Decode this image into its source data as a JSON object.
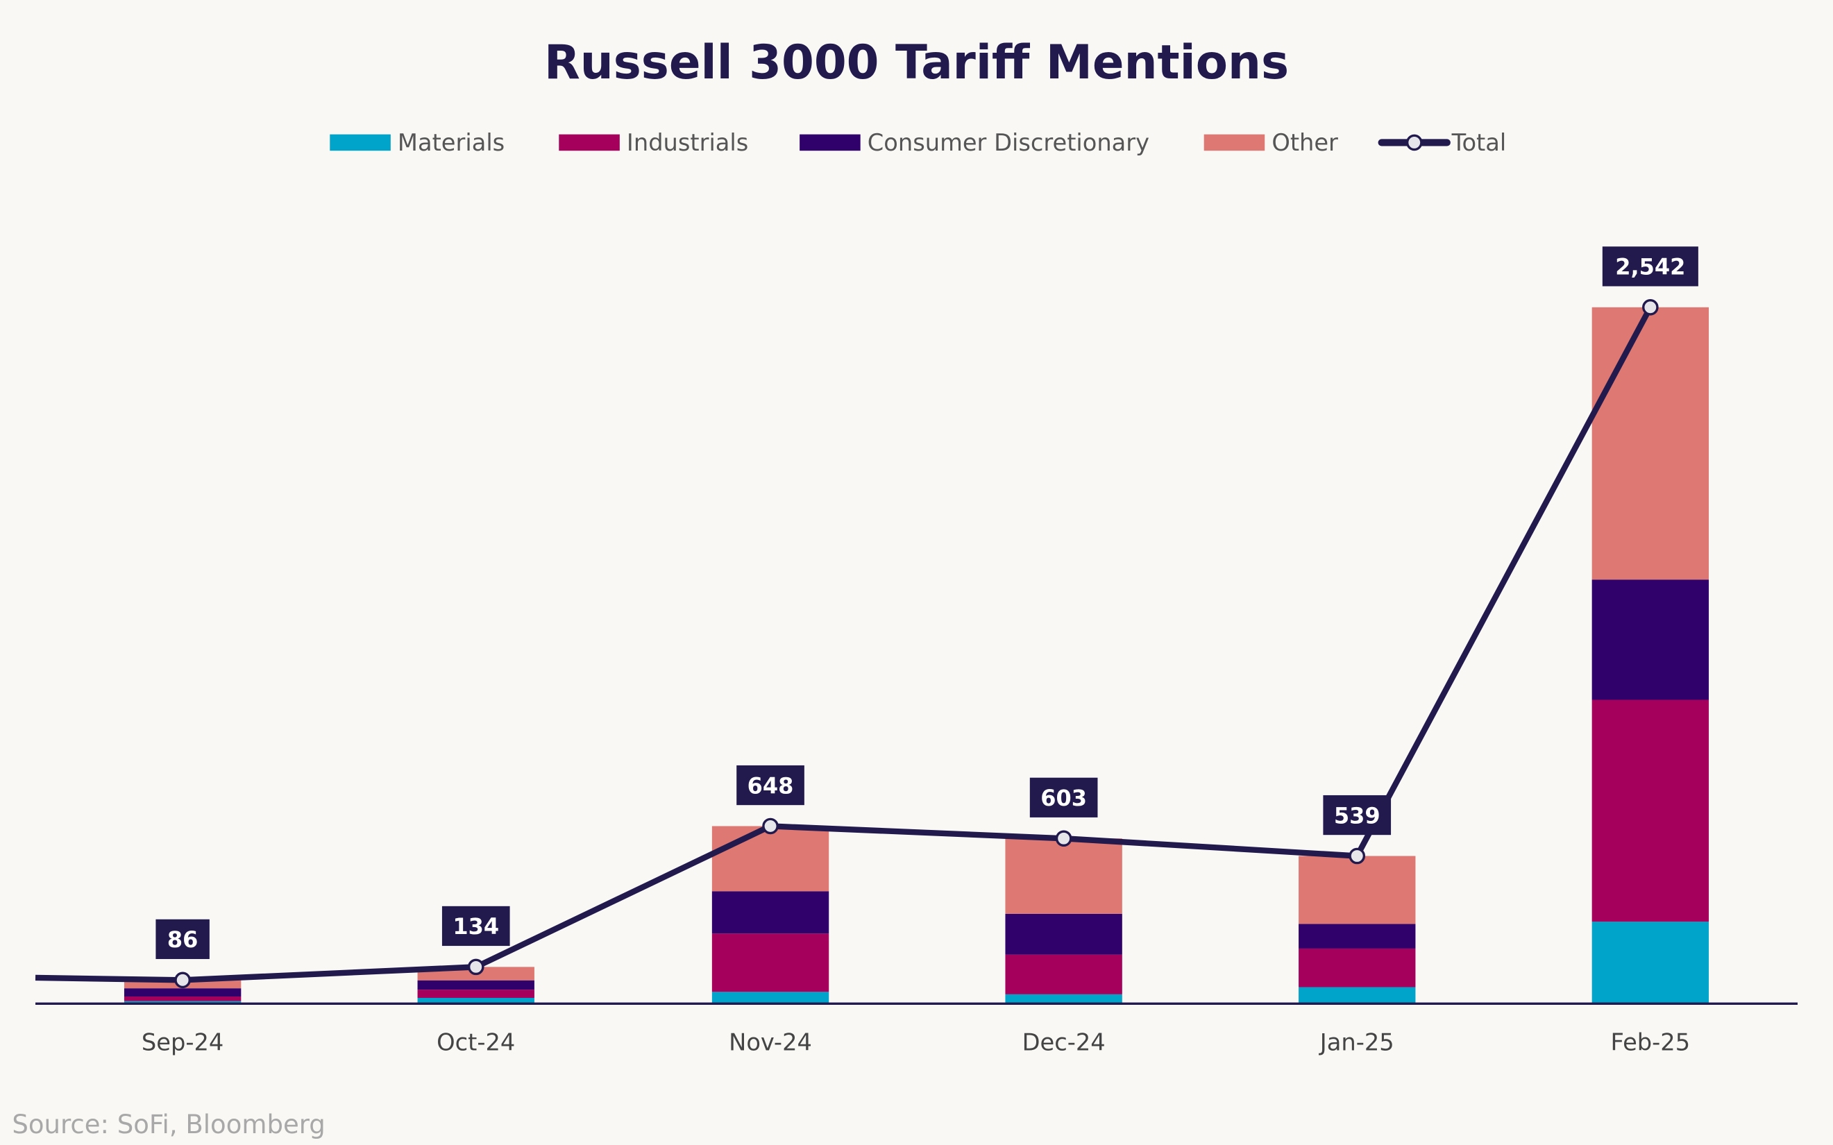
{
  "chart_data": {
    "type": "bar",
    "title": "Russell 3000 Tariff Mentions",
    "categories": [
      "Sep-24",
      "Oct-24",
      "Nov-24",
      "Dec-24",
      "Jan-25",
      "Feb-25"
    ],
    "stacked": true,
    "series": [
      {
        "name": "Materials",
        "color": "#00a3c9",
        "values": [
          9,
          21,
          43,
          34,
          60,
          299
        ]
      },
      {
        "name": "Industrials",
        "color": "#a4005c",
        "values": [
          17,
          30,
          213,
          145,
          141,
          810
        ]
      },
      {
        "name": "Consumer Discretionary",
        "color": "#30006b",
        "values": [
          30,
          34,
          154,
          149,
          90,
          439
        ]
      },
      {
        "name": "Other",
        "color": "#dd7872",
        "values": [
          30,
          49,
          238,
          275,
          248,
          994
        ]
      }
    ],
    "line": {
      "name": "Total",
      "color": "#22194d",
      "values": [
        86,
        134,
        648,
        603,
        539,
        2542
      ],
      "labels": [
        "86",
        "134",
        "648",
        "603",
        "539",
        "2,542"
      ]
    },
    "ylim": [
      0,
      2542
    ],
    "xlabel": "",
    "ylabel": "",
    "grid": false,
    "legend": "top-center",
    "source": "Source: SoFi, Bloomberg"
  }
}
